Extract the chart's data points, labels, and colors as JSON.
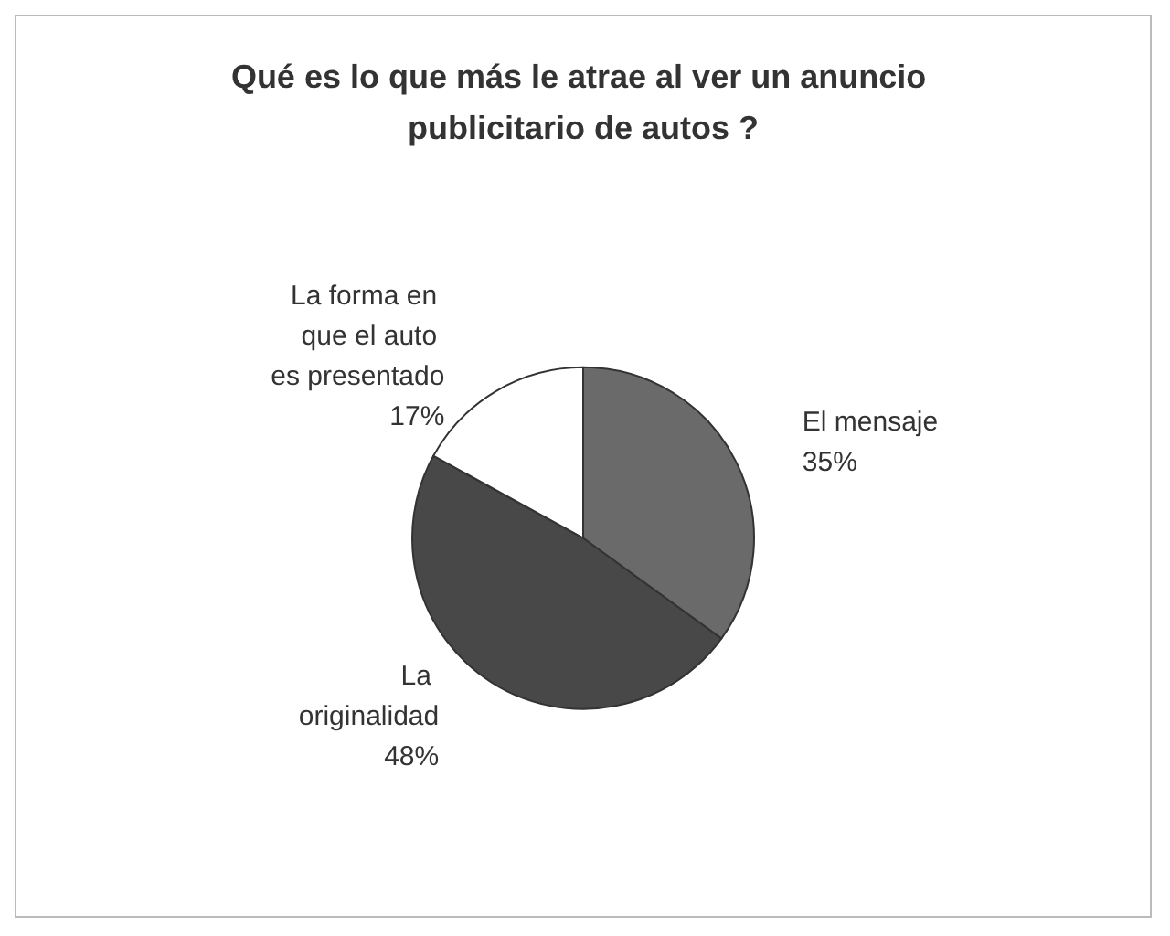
{
  "chart_data": {
    "type": "pie",
    "title": "Qué es lo que más le atrae al ver un anuncio publicitario de autos ?",
    "categories": [
      "El mensaje",
      "La originalidad",
      "La forma en que el auto es presentado"
    ],
    "values": [
      35,
      48,
      17
    ],
    "value_labels": [
      "35%",
      "48%",
      "17%"
    ],
    "colors": [
      "#6a6a6a",
      "#484848",
      "#ffffff"
    ],
    "legend": false
  }
}
